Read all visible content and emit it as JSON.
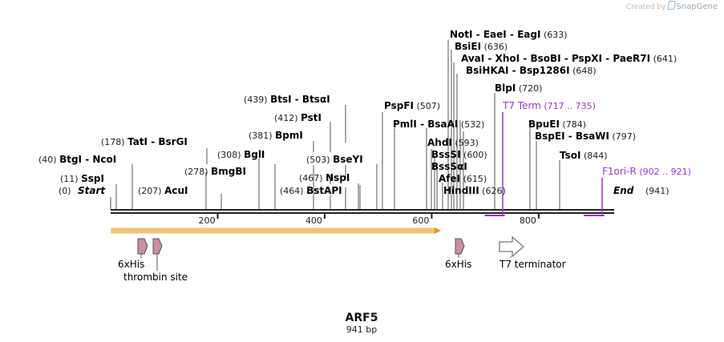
{
  "credit": {
    "prefix": "Created by",
    "brand": "SnapGene"
  },
  "map": {
    "title": "ARF5",
    "length_label": "941 bp",
    "total_bp": 941,
    "ruler_ticks": [
      "200",
      "400",
      "600",
      "800"
    ],
    "ruler_values": [
      200,
      400,
      600,
      800
    ],
    "start_label": "Start",
    "start_pos": "(0)",
    "end_label": "End",
    "end_pos": "(941)"
  },
  "enzymes": [
    {
      "pos": "(11)",
      "names": [
        "SspI"
      ],
      "bp": 11
    },
    {
      "pos": "(40)",
      "names": [
        "BtgI",
        "NcoI"
      ],
      "bp": 40
    },
    {
      "pos": "(178)",
      "names": [
        "TatI",
        "BsrGI"
      ],
      "bp": 178
    },
    {
      "pos": "(207)",
      "names": [
        "AcuI"
      ],
      "bp": 207
    },
    {
      "pos": "(278)",
      "names": [
        "BmgBI"
      ],
      "bp": 278
    },
    {
      "pos": "(308)",
      "names": [
        "BglI"
      ],
      "bp": 308
    },
    {
      "pos": "(381)",
      "names": [
        "BpmI"
      ],
      "bp": 381
    },
    {
      "pos": "(412)",
      "names": [
        "PstI"
      ],
      "bp": 412
    },
    {
      "pos": "(439)",
      "names": [
        "BtsI",
        "BtsαI"
      ],
      "bp": 439
    },
    {
      "pos": "(464)",
      "names": [
        "BstAPI"
      ],
      "bp": 464
    },
    {
      "pos": "(467)",
      "names": [
        "NspI"
      ],
      "bp": 467
    },
    {
      "pos": "(503)",
      "names": [
        "BseYI"
      ],
      "bp": 503
    },
    {
      "pos": "(507)",
      "names": [
        "PspFI"
      ],
      "bp": 507
    },
    {
      "pos": "(532)",
      "names": [
        "PmlI",
        "BsaAI"
      ],
      "bp": 532
    },
    {
      "pos": "(593)",
      "names": [
        "AhdI"
      ],
      "bp": 593
    },
    {
      "pos": "(600)",
      "names": [
        "BssSI"
      ],
      "bp": 600
    },
    {
      "pos": "",
      "names": [
        "BssSαI"
      ],
      "bp": 600
    },
    {
      "pos": "(615)",
      "names": [
        "AfeI"
      ],
      "bp": 615
    },
    {
      "pos": "(626)",
      "names": [
        "HindIII"
      ],
      "bp": 626
    },
    {
      "pos": "(633)",
      "names": [
        "NotI",
        "EaeI",
        "EagI"
      ],
      "bp": 633
    },
    {
      "pos": "(636)",
      "names": [
        "BsiEI"
      ],
      "bp": 636
    },
    {
      "pos": "(641)",
      "names": [
        "AvaI",
        "XhoI",
        "BsoBI",
        "PspXI",
        "PaeR7I"
      ],
      "bp": 641
    },
    {
      "pos": "(648)",
      "names": [
        "BsiHKAI",
        "Bsp1286I"
      ],
      "bp": 648
    },
    {
      "pos": "(720)",
      "names": [
        "BlpI"
      ],
      "bp": 720
    },
    {
      "pos": "(784)",
      "names": [
        "BpuEI"
      ],
      "bp": 784
    },
    {
      "pos": "(797)",
      "names": [
        "BspEI",
        "BsaWI"
      ],
      "bp": 797
    },
    {
      "pos": "(844)",
      "names": [
        "TsoI"
      ],
      "bp": 844
    }
  ],
  "primers": [
    {
      "name": "T7 Term",
      "range": "(717 .. 735)",
      "start_bp": 717,
      "end_bp": 735
    },
    {
      "name": "F1ori-R",
      "range": "(902 .. 921)",
      "start_bp": 902,
      "end_bp": 921
    }
  ],
  "features": [
    {
      "label": "6xHis",
      "start_bp": 52,
      "end_bp": 70
    },
    {
      "label": "thrombin site",
      "start_bp": 79,
      "end_bp": 96
    },
    {
      "label": "6xHis",
      "start_bp": 645,
      "end_bp": 663
    },
    {
      "label": "T7 terminator",
      "start_bp": 728,
      "end_bp": 775
    }
  ],
  "orf": {
    "start_bp": 3,
    "end_bp": 615
  },
  "colors": {
    "enzyme_text": "#000000",
    "enzyme_pos": "#222222",
    "primer": "#9933cc",
    "feature_fill": "#c98ea0",
    "feature_stroke": "#555555",
    "terminator_fill": "#ffffff",
    "orf_fill": "#f5c36a",
    "orf_edge": "#e8a33c",
    "backbone": "#222222"
  }
}
